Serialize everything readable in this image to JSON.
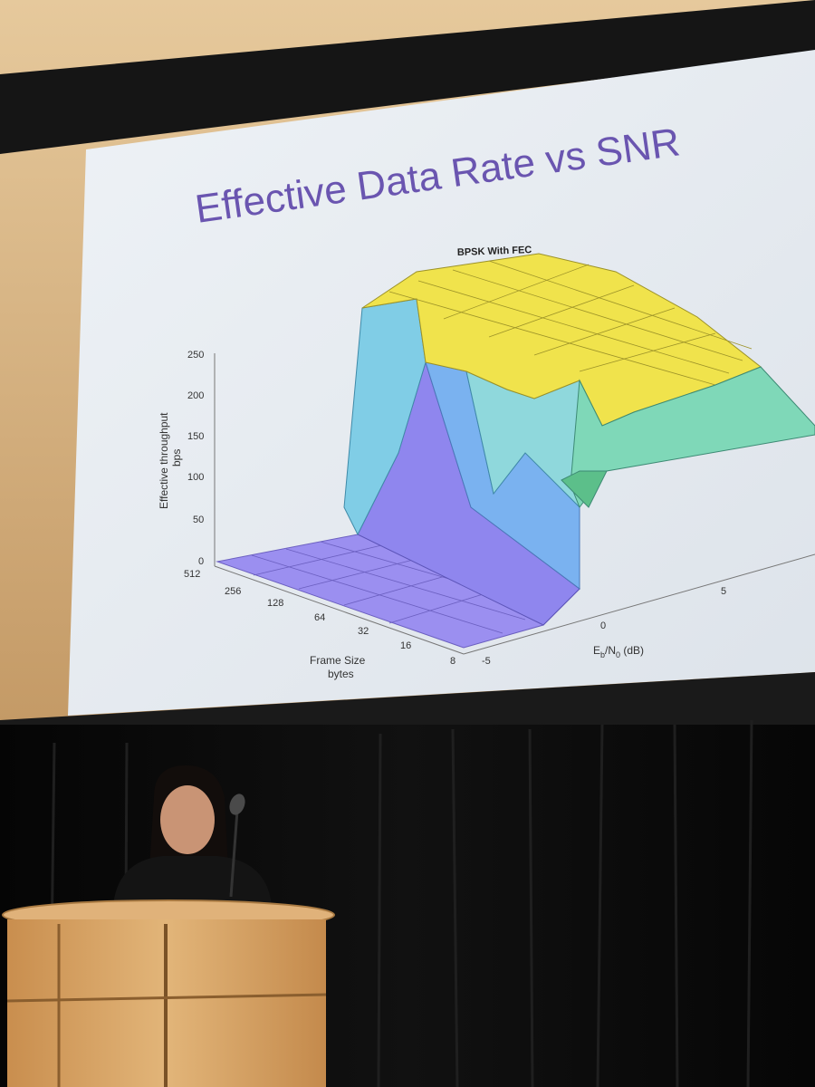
{
  "slide": {
    "title": "Effective Data Rate vs SNR"
  },
  "plot": {
    "title": "BPSK With FEC",
    "z_axis_label_line1": "Effective throughput",
    "z_axis_label_line2": "bps",
    "z_ticks": [
      "250",
      "200",
      "150",
      "100",
      "50",
      "0"
    ],
    "frame_size_label_line1": "Frame Size",
    "frame_size_label_line2": "bytes",
    "frame_size_ticks": [
      "512",
      "256",
      "128",
      "64",
      "32",
      "16",
      "8"
    ],
    "snr_ticks": [
      "-5",
      "0",
      "5"
    ],
    "snr_label_main": "E",
    "snr_label_sub1": "b",
    "snr_label_mid": "/N",
    "snr_label_sub2": "0",
    "snr_label_tail": " (dB)"
  },
  "colors": {
    "slide_bg": "#eef1f4",
    "title": "#6a55b0",
    "surface_high": "#f2e64a",
    "surface_mid": "#7fd3d6",
    "surface_low": "#9a8ef0",
    "podium": "#d9a868"
  }
}
